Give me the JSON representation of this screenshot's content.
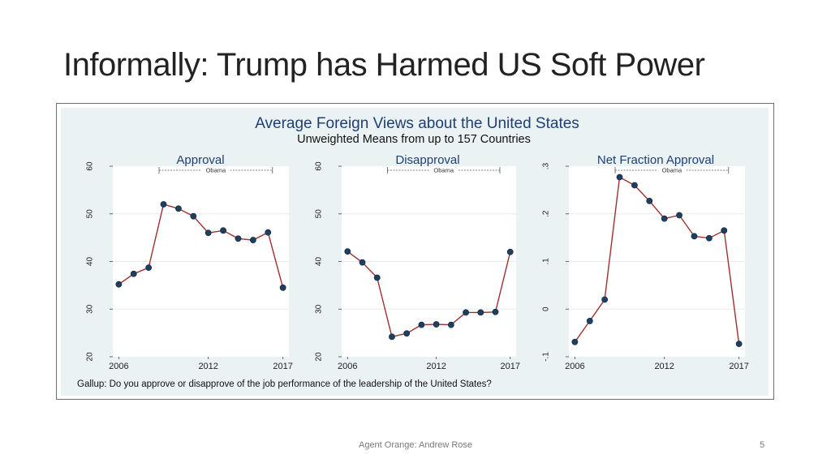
{
  "slide": {
    "title": "Informally: Trump has Harmed US Soft Power",
    "footer": "Agent Orange: Andrew Rose",
    "page_number": "5"
  },
  "figure": {
    "title": "Average Foreign Views about the United States",
    "subtitle": "Unweighted Means from up to 157 Countries",
    "note": "Gallup: Do you approve or disapprove of the job performance of the leadership of the United States?",
    "colors": {
      "panel_bg": "#eaf2f3",
      "plot_bg": "#ffffff",
      "title": "#1f3f73",
      "line": "#a0302f",
      "marker": "#1f3f5e",
      "grid": "#e8ecec"
    }
  },
  "chart_data": [
    {
      "type": "line",
      "title": "Approval",
      "annotation": "Obama",
      "annotation_span": [
        2009,
        2016
      ],
      "x": [
        2006,
        2007,
        2008,
        2009,
        2010,
        2011,
        2012,
        2013,
        2014,
        2015,
        2016,
        2017
      ],
      "values": [
        35.2,
        37.4,
        38.7,
        52.0,
        51.1,
        49.5,
        46.0,
        46.5,
        44.8,
        44.5,
        46.1,
        34.5
      ],
      "ylim": [
        20,
        60
      ],
      "yticks": [
        "20",
        "30",
        "40",
        "50",
        "60"
      ],
      "xticks": [
        "2006",
        "2012",
        "2017"
      ]
    },
    {
      "type": "line",
      "title": "Disapproval",
      "annotation": "Obama",
      "annotation_span": [
        2009,
        2016
      ],
      "x": [
        2006,
        2007,
        2008,
        2009,
        2010,
        2011,
        2012,
        2013,
        2014,
        2015,
        2016,
        2017
      ],
      "values": [
        42.1,
        39.8,
        36.6,
        24.2,
        24.9,
        26.7,
        26.8,
        26.7,
        29.3,
        29.3,
        29.4,
        42.0
      ],
      "ylim": [
        20,
        60
      ],
      "yticks": [
        "20",
        "30",
        "40",
        "50",
        "60"
      ],
      "xticks": [
        "2006",
        "2012",
        "2017"
      ]
    },
    {
      "type": "line",
      "title": "Net Fraction Approval",
      "annotation": "Obama",
      "annotation_span": [
        2009,
        2016
      ],
      "x": [
        2006,
        2007,
        2008,
        2009,
        2010,
        2011,
        2012,
        2013,
        2014,
        2015,
        2016,
        2017
      ],
      "values": [
        -0.069,
        -0.025,
        0.02,
        0.277,
        0.26,
        0.227,
        0.19,
        0.197,
        0.153,
        0.149,
        0.165,
        -0.073
      ],
      "ylim": [
        -0.1,
        0.3
      ],
      "yticks": [
        "-.1",
        "0",
        ".1",
        ".2",
        ".3"
      ],
      "xticks": [
        "2006",
        "2012",
        "2017"
      ]
    }
  ]
}
